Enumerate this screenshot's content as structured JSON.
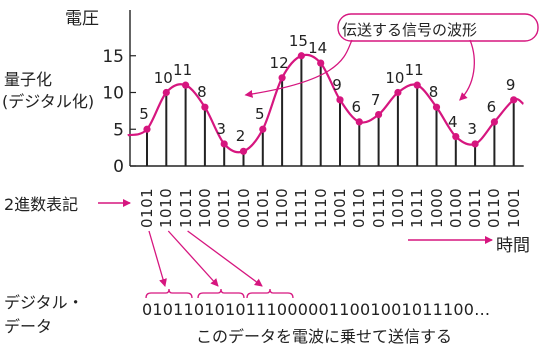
{
  "chart_data": {
    "type": "line",
    "title": "",
    "ylabel": "電圧",
    "yticks": [
      "0",
      "5",
      "10",
      "15"
    ],
    "ylim": [
      0,
      16
    ],
    "x": [
      1,
      2,
      3,
      4,
      5,
      6,
      7,
      8,
      9,
      10,
      11,
      12,
      13,
      14,
      15,
      16,
      17,
      18,
      19,
      20
    ],
    "values": [
      5,
      10,
      11,
      8,
      3,
      2,
      5,
      12,
      15,
      14,
      9,
      6,
      7,
      10,
      11,
      8,
      4,
      3,
      6,
      9
    ],
    "binary": [
      "0101",
      "1010",
      "1011",
      "1000",
      "0011",
      "0010",
      "0101",
      "1100",
      "1111",
      "1110",
      "1001",
      "0110",
      "0111",
      "1010",
      "1011",
      "1000",
      "0100",
      "0011",
      "0110",
      "1001"
    ],
    "series_callout": "伝送する信号の波形",
    "time_label": "時間"
  },
  "labels": {
    "quantization_line1": "量子化",
    "quantization_line2": "(デジタル化)",
    "binary_notation": "2進数表記",
    "digital_data_line1": "デジタル・",
    "digital_data_line2": "データ",
    "bitstream": "01011010101110000011001001011100…",
    "transmit_note": "このデータを電波に乗せて送信する"
  },
  "colors": {
    "signal": "#d6167f",
    "axis": "#222222",
    "text": "#222222"
  }
}
